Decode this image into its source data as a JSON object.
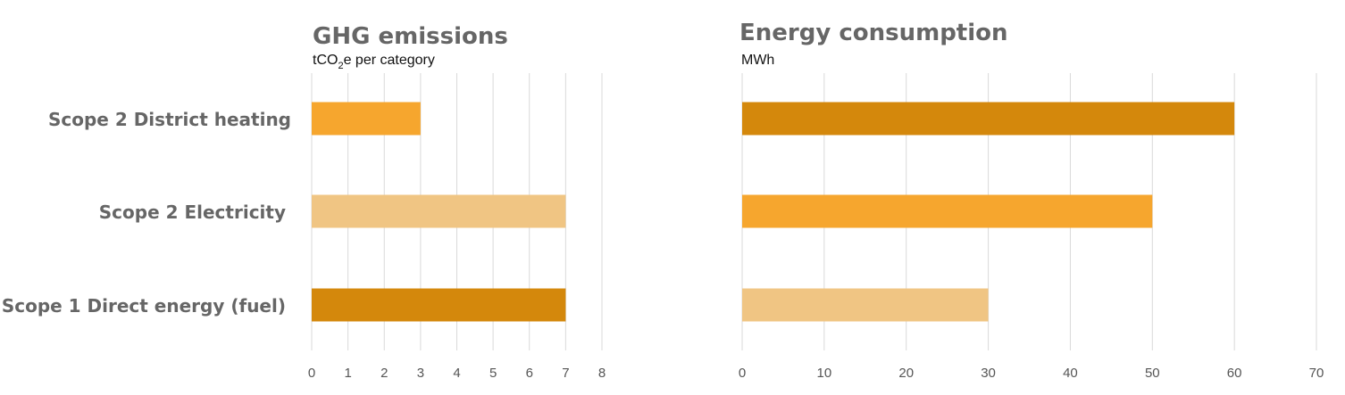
{
  "colors": {
    "dark": "#d4880c",
    "mid": "#f6a62e",
    "light": "#f0c583",
    "grid": "#d9d9d9",
    "text": "#666666"
  },
  "chart_data": [
    {
      "type": "bar",
      "orientation": "horizontal",
      "title": "GHG emissions",
      "subtitle": {
        "pre": "tCO",
        "sub": "2",
        "post": "e per category"
      },
      "categories": [
        "Scope 2 District heating",
        "Scope 2 Electricity",
        "Scope 1 Direct energy (fuel)"
      ],
      "values": [
        3,
        7,
        7
      ],
      "bar_colors": [
        "#f6a62e",
        "#f0c583",
        "#d4880c"
      ],
      "xlim": [
        0,
        8
      ],
      "ticks": [
        0,
        1,
        2,
        3,
        4,
        5,
        6,
        7,
        8
      ],
      "grid": true
    },
    {
      "type": "bar",
      "orientation": "horizontal",
      "title": "Energy consumption",
      "subtitle": {
        "pre": "MWh",
        "sub": "",
        "post": ""
      },
      "categories": [
        "Scope 2 District heating",
        "Scope 2 Electricity",
        "Scope 1 Direct energy (fuel)"
      ],
      "values": [
        60,
        50,
        30
      ],
      "bar_colors": [
        "#d4880c",
        "#f6a62e",
        "#f0c583"
      ],
      "xlim": [
        0,
        70
      ],
      "ticks": [
        0,
        10,
        20,
        30,
        40,
        50,
        60,
        70
      ],
      "grid": true
    }
  ]
}
